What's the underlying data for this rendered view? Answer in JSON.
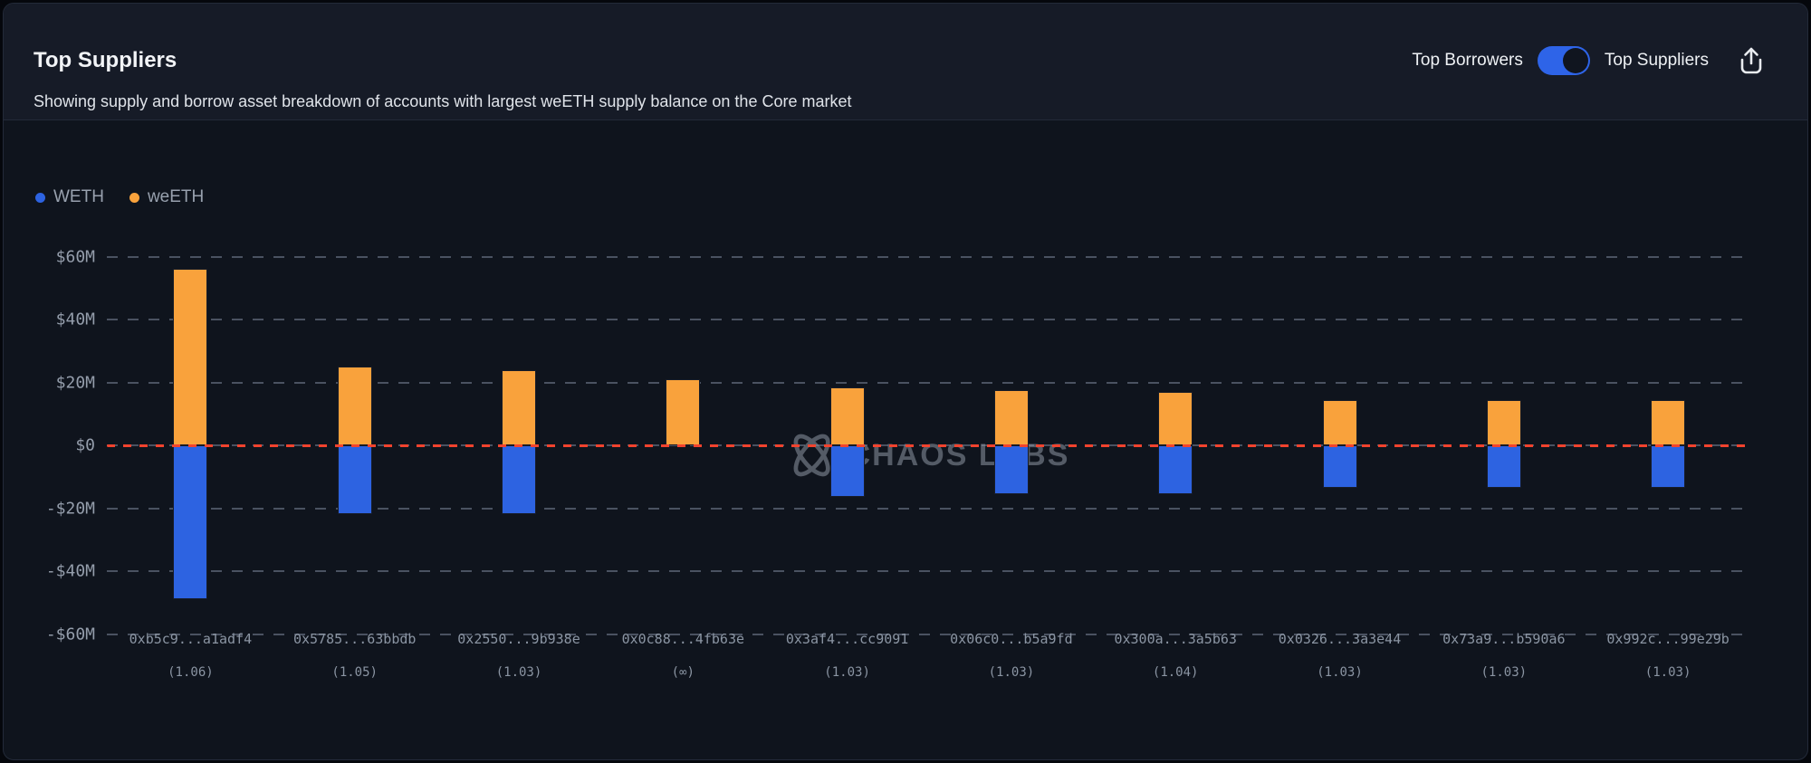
{
  "header": {
    "title": "Top Suppliers",
    "subtitle": "Showing supply and borrow asset breakdown of accounts with largest weETH supply balance on the Core market",
    "toggle": {
      "left_label": "Top Borrowers",
      "right_label": "Top Suppliers",
      "selected": "Top Suppliers",
      "state": "on-right"
    }
  },
  "legend": [
    {
      "label": "WETH",
      "color": "#2D63E1"
    },
    {
      "label": "weETH",
      "color": "#F9A23C"
    }
  ],
  "watermark": {
    "text": "CHAOS LABS",
    "icon": "chaos-labs-logo"
  },
  "colors": {
    "accent_blue": "#2D63E1",
    "accent_orange": "#F9A23C",
    "zero_line_red": "#F2432E",
    "toggle_on_blue": "#2E64E8",
    "card_background": "#0F141D",
    "header_background": "#161B27",
    "grid_gray": "#4A5261",
    "axis_text": "#959EAC",
    "label_text": "#8B95A3"
  },
  "chart_data": {
    "type": "bar",
    "stacked_diverging": true,
    "units": "$M",
    "categories": [
      "0xb5c9...a1adf4",
      "0x5785...63bbdb",
      "0x2550...9b938e",
      "0x0c88...4fb63e",
      "0x3af4...cc9091",
      "0x06c0...b5a9fd",
      "0x300a...3a5b63",
      "0x0326...3a3e44",
      "0x73a9...b590a6",
      "0x992c...99e29b"
    ],
    "category_sublabels": [
      "(1.06)",
      "(1.05)",
      "(1.03)",
      "(∞)",
      "(1.03)",
      "(1.03)",
      "(1.04)",
      "(1.03)",
      "(1.03)",
      "(1.03)"
    ],
    "series": [
      {
        "name": "weETH",
        "role": "supply",
        "color": "#F9A23C",
        "values": [
          56,
          25,
          24,
          21,
          18.5,
          17.5,
          17,
          14.5,
          14.5,
          14.5
        ]
      },
      {
        "name": "WETH",
        "role": "borrow",
        "color": "#2D63E1",
        "values": [
          -49,
          -22,
          -22,
          0,
          -16.5,
          -15.5,
          -15.5,
          -13.5,
          -13.5,
          -13.5
        ]
      }
    ],
    "y_ticks": [
      60,
      40,
      20,
      0,
      -20,
      -40,
      -60
    ],
    "y_tick_labels": [
      "$60M",
      "$40M",
      "$20M",
      "$0",
      "-$20M",
      "-$40M",
      "-$60M"
    ],
    "ylim": [
      -60,
      60
    ],
    "grid": true,
    "zero_line": true,
    "zero_line_color": "#F2432E",
    "legend_position": "top-left",
    "title": "Top Suppliers",
    "xlabel": "",
    "ylabel": ""
  }
}
